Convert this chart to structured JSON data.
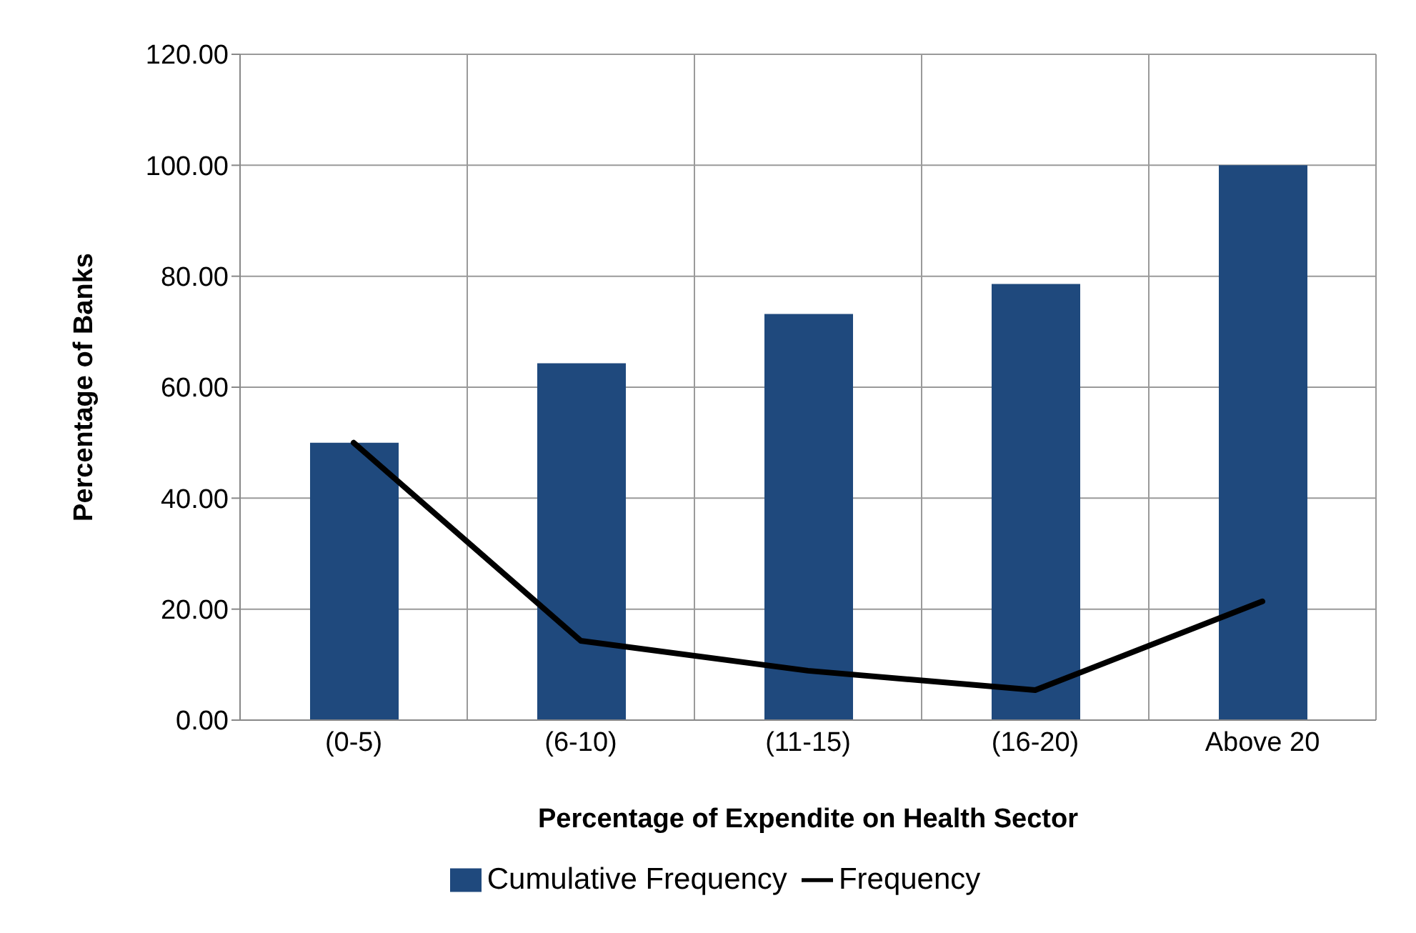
{
  "chart_data": {
    "type": "bar",
    "xlabel": "Percentage of Expendite on Health Sector",
    "ylabel": "Percentage of Banks",
    "categories": [
      "(0-5)",
      "(6-10)",
      "(11-15)",
      "(16-20)",
      "Above 20"
    ],
    "series": [
      {
        "name": "Cumulative Frequency",
        "color": "#1f497d",
        "values": [
          50,
          64.3,
          73.2,
          78.6,
          100
        ]
      },
      {
        "name": "Frequency",
        "type": "line",
        "color": "#000000",
        "values": [
          50,
          14.3,
          8.9,
          5.4,
          21.4
        ]
      }
    ],
    "ylim": [
      0,
      120
    ],
    "yticks": [
      {
        "value": 0,
        "label": "0.00"
      },
      {
        "value": 20,
        "label": "20.00"
      },
      {
        "value": 40,
        "label": "40.00"
      },
      {
        "value": 60,
        "label": "60.00"
      },
      {
        "value": 80,
        "label": "80.00"
      },
      {
        "value": 100,
        "label": "100.00"
      },
      {
        "value": 120,
        "label": "120.00"
      }
    ],
    "grid": true,
    "legend": "bottom",
    "marker": "none",
    "line_style": "solid"
  }
}
